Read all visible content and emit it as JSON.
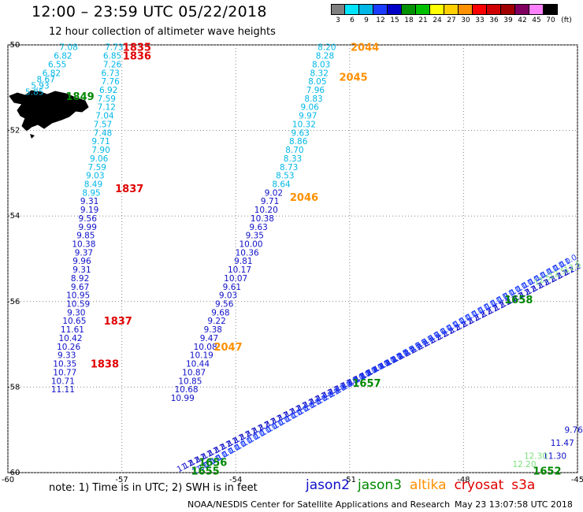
{
  "header": {
    "title": "12:00 – 23:59 UTC 05/22/2018",
    "subtitle": "12 hour collection of altimeter wave heights"
  },
  "color_scale": {
    "values": [
      "3",
      "6",
      "9",
      "12",
      "15",
      "18",
      "21",
      "24",
      "27",
      "30",
      "33",
      "36",
      "39",
      "42",
      "45",
      "70"
    ],
    "unit": "(ft)",
    "colors": [
      "#808080",
      "#00e5ff",
      "#00b7e6",
      "#1a3cff",
      "#0000c8",
      "#009000",
      "#00c000",
      "#ffff00",
      "#ffd000",
      "#ff9000",
      "#ff0000",
      "#d00000",
      "#a00000",
      "#800060",
      "#ff80ff",
      "#000000"
    ]
  },
  "note": "note:  1) Time is in UTC;  2) SWH is in feet",
  "legend": [
    {
      "name": "jason2",
      "color": "#1010c8"
    },
    {
      "name": "jason3",
      "color": "#008800"
    },
    {
      "name": "altika",
      "color": "#ff9000"
    },
    {
      "name": "cryosat",
      "color": "#e00000"
    },
    {
      "name": "s3a",
      "color": "#e00000"
    }
  ],
  "footer": {
    "credit": "NOAA/NESDIS Center for Satellite Applications and Research",
    "timestamp": "May 23 13:07:58 UTC 2018"
  },
  "chart_data": {
    "type": "scatter",
    "xlabel": "",
    "ylabel": "",
    "xlim": [
      -60,
      -45
    ],
    "ylim": [
      -60,
      -50
    ],
    "x_ticks": [
      "-60",
      "-57",
      "-54",
      "-51",
      "-48",
      "-45"
    ],
    "y_ticks": [
      "-50",
      "-52",
      "-54",
      "-56",
      "-58",
      "-60"
    ],
    "grid": "dotted",
    "tracks": [
      {
        "name": "track-a",
        "color": "#00b7e6",
        "values": [
          "5.85",
          "5.93",
          "8.67",
          "6.82",
          "6.55",
          "6.82",
          "7.08"
        ],
        "points": [
          [
            -59.3,
            -51.1
          ],
          [
            -59.15,
            -50.95
          ],
          [
            -59.0,
            -50.8
          ],
          [
            -58.85,
            -50.65
          ],
          [
            -58.7,
            -50.45
          ],
          [
            -58.55,
            -50.25
          ],
          [
            -58.4,
            -50.05
          ]
        ]
      },
      {
        "name": "track-b",
        "color": "#00b7e6",
        "values": [
          "7.73",
          "6.85",
          "7.26",
          "6.73",
          "7.76",
          "6.92",
          "7.59",
          "7.12",
          "7.04",
          "7.57",
          "7.48",
          "9.71",
          "7.90",
          "9.06",
          "7.59",
          "9.03",
          "8.49",
          "8.95"
        ],
        "points": [
          [
            -57.2,
            -50.05
          ],
          [
            -57.25,
            -50.25
          ],
          [
            -57.25,
            -50.45
          ],
          [
            -57.3,
            -50.65
          ],
          [
            -57.3,
            -50.85
          ],
          [
            -57.35,
            -51.05
          ],
          [
            -57.4,
            -51.25
          ],
          [
            -57.4,
            -51.45
          ],
          [
            -57.45,
            -51.65
          ],
          [
            -57.5,
            -51.85
          ],
          [
            -57.5,
            -52.05
          ],
          [
            -57.55,
            -52.25
          ],
          [
            -57.55,
            -52.45
          ],
          [
            -57.6,
            -52.65
          ],
          [
            -57.65,
            -52.85
          ],
          [
            -57.7,
            -53.05
          ],
          [
            -57.75,
            -53.25
          ],
          [
            -57.8,
            -53.45
          ]
        ]
      },
      {
        "name": "track-b-south",
        "color": "#1010c8",
        "values": [
          "9.31",
          "9.19",
          "9.56",
          "9.99",
          "9.85",
          "10.38",
          "9.37",
          "9.96",
          "9.31",
          "8.92",
          "9.67",
          "10.95",
          "10.59",
          "9.30",
          "10.65",
          "11.61",
          "10.42",
          "10.26",
          "9.33",
          "10.35",
          "10.77",
          "10.71",
          "11.11"
        ],
        "points": [
          [
            -57.85,
            -53.65
          ],
          [
            -57.85,
            -53.85
          ],
          [
            -57.9,
            -54.05
          ],
          [
            -57.9,
            -54.25
          ],
          [
            -57.95,
            -54.45
          ],
          [
            -58.0,
            -54.65
          ],
          [
            -58.0,
            -54.85
          ],
          [
            -58.05,
            -55.05
          ],
          [
            -58.05,
            -55.25
          ],
          [
            -58.1,
            -55.45
          ],
          [
            -58.1,
            -55.65
          ],
          [
            -58.15,
            -55.85
          ],
          [
            -58.15,
            -56.05
          ],
          [
            -58.2,
            -56.25
          ],
          [
            -58.25,
            -56.45
          ],
          [
            -58.3,
            -56.65
          ],
          [
            -58.35,
            -56.85
          ],
          [
            -58.4,
            -57.05
          ],
          [
            -58.45,
            -57.25
          ],
          [
            -58.5,
            -57.45
          ],
          [
            -58.5,
            -57.65
          ],
          [
            -58.55,
            -57.85
          ],
          [
            -58.55,
            -58.05
          ]
        ]
      },
      {
        "name": "track-c",
        "color": "#00b7e6",
        "values": [
          "8.20",
          "8.28",
          "8.03",
          "8.32",
          "8.05",
          "7.96",
          "8.83",
          "9.06",
          "9.97",
          "10.32",
          "9.63",
          "8.86",
          "8.70",
          "8.33",
          "8.73",
          "8.53",
          "8.64"
        ],
        "points": [
          [
            -51.6,
            -50.05
          ],
          [
            -51.65,
            -50.25
          ],
          [
            -51.75,
            -50.45
          ],
          [
            -51.8,
            -50.65
          ],
          [
            -51.85,
            -50.85
          ],
          [
            -51.9,
            -51.05
          ],
          [
            -51.95,
            -51.25
          ],
          [
            -52.05,
            -51.45
          ],
          [
            -52.1,
            -51.65
          ],
          [
            -52.2,
            -51.85
          ],
          [
            -52.3,
            -52.05
          ],
          [
            -52.35,
            -52.25
          ],
          [
            -52.45,
            -52.45
          ],
          [
            -52.5,
            -52.65
          ],
          [
            -52.6,
            -52.85
          ],
          [
            -52.7,
            -53.05
          ],
          [
            -52.8,
            -53.25
          ]
        ]
      },
      {
        "name": "track-c-south",
        "color": "#1010c8",
        "values": [
          "9.02",
          "9.71",
          "10.20",
          "10.38",
          "9.63",
          "9.35",
          "10.00",
          "10.36",
          "9.81",
          "10.17",
          "10.07",
          "9.61",
          "9.03",
          "9.56",
          "9.68",
          "9.22",
          "9.38",
          "9.47",
          "10.08",
          "10.19",
          "10.44",
          "10.87",
          "10.85",
          "10.68",
          "10.99"
        ],
        "points": [
          [
            -53.0,
            -53.45
          ],
          [
            -53.1,
            -53.65
          ],
          [
            -53.2,
            -53.85
          ],
          [
            -53.3,
            -54.05
          ],
          [
            -53.4,
            -54.25
          ],
          [
            -53.5,
            -54.45
          ],
          [
            -53.6,
            -54.65
          ],
          [
            -53.7,
            -54.85
          ],
          [
            -53.8,
            -55.05
          ],
          [
            -53.9,
            -55.25
          ],
          [
            -54.0,
            -55.45
          ],
          [
            -54.1,
            -55.65
          ],
          [
            -54.2,
            -55.85
          ],
          [
            -54.3,
            -56.05
          ],
          [
            -54.4,
            -56.25
          ],
          [
            -54.5,
            -56.45
          ],
          [
            -54.6,
            -56.65
          ],
          [
            -54.7,
            -56.85
          ],
          [
            -54.8,
            -57.05
          ],
          [
            -54.9,
            -57.25
          ],
          [
            -55.0,
            -57.45
          ],
          [
            -55.1,
            -57.65
          ],
          [
            -55.2,
            -57.85
          ],
          [
            -55.3,
            -58.05
          ],
          [
            -55.4,
            -58.25
          ]
        ]
      },
      {
        "name": "track-d",
        "color": "#1010c8",
        "values": [
          "11.30",
          "11.47",
          "9.76"
        ],
        "points": [
          [
            -45.6,
            -59.6
          ],
          [
            -45.4,
            -59.3
          ],
          [
            -45.1,
            -59.0
          ]
        ]
      },
      {
        "name": "track-d-jason3",
        "color": "#7ee07e",
        "values": [
          "12.20",
          "12.30"
        ],
        "points": [
          [
            -46.4,
            -59.8
          ],
          [
            -46.1,
            -59.6
          ]
        ]
      }
    ],
    "time_labels": [
      {
        "text": "1835",
        "color": "#e00000",
        "x": -56.6,
        "y": -50.05
      },
      {
        "text": "1836",
        "color": "#e00000",
        "x": -56.6,
        "y": -50.25
      },
      {
        "text": "1849",
        "color": "#008800",
        "x": -58.1,
        "y": -51.2
      },
      {
        "text": "1837",
        "color": "#e00000",
        "x": -56.8,
        "y": -53.35
      },
      {
        "text": "1837",
        "color": "#e00000",
        "x": -57.1,
        "y": -56.45
      },
      {
        "text": "1838",
        "color": "#e00000",
        "x": -57.45,
        "y": -57.45
      },
      {
        "text": "2044",
        "color": "#ff9000",
        "x": -50.6,
        "y": -50.05
      },
      {
        "text": "2045",
        "color": "#ff9000",
        "x": -50.9,
        "y": -50.75
      },
      {
        "text": "2046",
        "color": "#ff9000",
        "x": -52.2,
        "y": -53.55
      },
      {
        "text": "2047",
        "color": "#ff9000",
        "x": -54.2,
        "y": -57.05
      },
      {
        "text": "1658",
        "color": "#008800",
        "x": -46.55,
        "y": -55.95
      },
      {
        "text": "1657",
        "color": "#008800",
        "x": -50.55,
        "y": -57.9
      },
      {
        "text": "1656",
        "color": "#008800",
        "x": -54.6,
        "y": -59.75
      },
      {
        "text": "1655",
        "color": "#008800",
        "x": -54.8,
        "y": -59.95
      },
      {
        "text": "1652",
        "color": "#008800",
        "x": -45.8,
        "y": -59.95
      }
    ],
    "diagonal_tracks": [
      {
        "name": "jason2-diag",
        "color": "#1010c8",
        "from": [
          -55.3,
          -59.9
        ],
        "to": [
          -45.1,
          -55.3
        ],
        "count": 62,
        "sample": "11.2"
      },
      {
        "name": "jason3-diag",
        "color": "#1a3cff",
        "from": [
          -54.9,
          -59.95
        ],
        "to": [
          -45.2,
          -55.1
        ],
        "count": 60,
        "sample": "11.0"
      },
      {
        "name": "jason3-green-end",
        "color": "#7ee07e",
        "from": [
          -45.9,
          -55.55
        ],
        "to": [
          -45.1,
          -55.25
        ],
        "count": 3,
        "sample": "12.5"
      }
    ]
  }
}
